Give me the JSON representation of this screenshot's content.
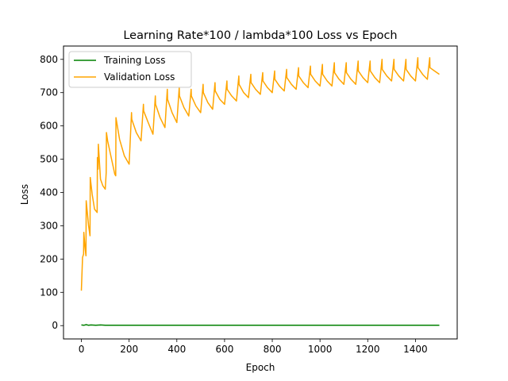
{
  "chart_data": {
    "type": "line",
    "title": "Learning Rate*100 / lambda*100 Loss vs Epoch",
    "xlabel": "Epoch",
    "ylabel": "Loss",
    "xlim": [
      -75,
      1575
    ],
    "ylim": [
      -40,
      840
    ],
    "xticks": [
      0,
      200,
      400,
      600,
      800,
      1000,
      1200,
      1400
    ],
    "yticks": [
      0,
      100,
      200,
      300,
      400,
      500,
      600,
      700,
      800
    ],
    "grid": false,
    "legend_position": "upper-left",
    "series": [
      {
        "name": "Training Loss",
        "color": "#008000",
        "x": [
          0,
          10,
          20,
          30,
          40,
          60,
          80,
          100,
          150,
          200,
          300,
          400,
          500,
          600,
          700,
          800,
          900,
          1000,
          1100,
          1200,
          1300,
          1400,
          1500
        ],
        "y": [
          2,
          1,
          3,
          1,
          2,
          1,
          2,
          1,
          1,
          1,
          1,
          1,
          1,
          1,
          1,
          1,
          1,
          1,
          1,
          1,
          1,
          1,
          1
        ]
      },
      {
        "name": "Validation Loss",
        "color": "#ffa500",
        "x": [
          0,
          5,
          9,
          10,
          15,
          19,
          20,
          30,
          36,
          37,
          45,
          55,
          66,
          67,
          70,
          71,
          80,
          90,
          100,
          104,
          105,
          110,
          125,
          140,
          144,
          145,
          160,
          180,
          200,
          210,
          211,
          230,
          250,
          260,
          261,
          280,
          300,
          310,
          311,
          330,
          350,
          360,
          361,
          380,
          400,
          410,
          411,
          430,
          450,
          460,
          461,
          480,
          500,
          510,
          511,
          530,
          550,
          560,
          561,
          580,
          600,
          610,
          611,
          630,
          650,
          660,
          661,
          680,
          700,
          710,
          711,
          730,
          750,
          760,
          761,
          780,
          800,
          810,
          811,
          830,
          850,
          860,
          861,
          880,
          900,
          910,
          911,
          930,
          950,
          960,
          961,
          980,
          1000,
          1010,
          1011,
          1030,
          1050,
          1060,
          1061,
          1080,
          1100,
          1110,
          1111,
          1130,
          1150,
          1160,
          1161,
          1180,
          1200,
          1210,
          1211,
          1230,
          1250,
          1260,
          1261,
          1280,
          1300,
          1310,
          1311,
          1330,
          1350,
          1360,
          1361,
          1380,
          1400,
          1410,
          1411,
          1430,
          1450,
          1460,
          1461,
          1480,
          1500
        ],
        "y": [
          105,
          205,
          215,
          280,
          235,
          210,
          375,
          300,
          270,
          445,
          395,
          350,
          340,
          505,
          470,
          545,
          440,
          420,
          410,
          460,
          580,
          555,
          505,
          455,
          450,
          625,
          560,
          510,
          485,
          640,
          620,
          580,
          555,
          665,
          645,
          610,
          575,
          690,
          665,
          625,
          595,
          710,
          680,
          640,
          610,
          715,
          690,
          655,
          630,
          710,
          690,
          660,
          640,
          725,
          700,
          670,
          650,
          730,
          705,
          680,
          665,
          735,
          710,
          690,
          675,
          750,
          725,
          700,
          685,
          755,
          730,
          710,
          695,
          760,
          735,
          715,
          700,
          765,
          740,
          720,
          705,
          770,
          745,
          725,
          710,
          775,
          750,
          730,
          715,
          780,
          755,
          735,
          720,
          785,
          755,
          735,
          720,
          790,
          760,
          740,
          725,
          790,
          760,
          740,
          725,
          795,
          765,
          745,
          730,
          795,
          765,
          745,
          730,
          800,
          770,
          750,
          735,
          800,
          770,
          750,
          735,
          800,
          770,
          750,
          735,
          805,
          775,
          755,
          740,
          805,
          775,
          765,
          755
        ]
      }
    ]
  }
}
